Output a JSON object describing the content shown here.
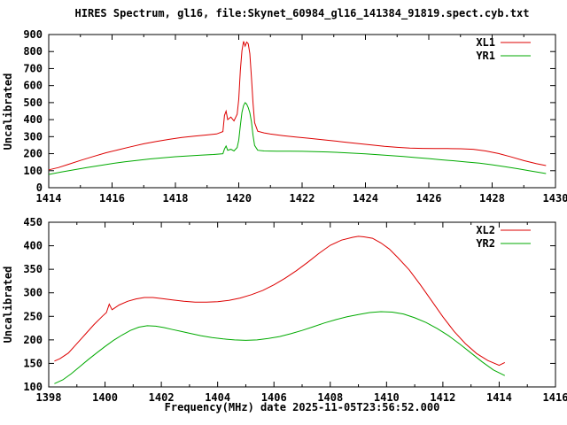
{
  "colors": {
    "background": "#ffffff",
    "axis": "#000000",
    "series_red": "#dd0000",
    "series_green": "#00aa00"
  },
  "chart_data": [
    {
      "type": "line",
      "title": "HIRES Spectrum, gl16, file:Skynet_60984_gl16_141384_91819.spect.cyb.txt",
      "ylabel": "Uncalibrated",
      "xlabel": "",
      "xlim": [
        1414,
        1430
      ],
      "ylim": [
        0,
        900
      ],
      "xticks": [
        1414,
        1416,
        1418,
        1420,
        1422,
        1424,
        1426,
        1428,
        1430
      ],
      "yticks": [
        0,
        100,
        200,
        300,
        400,
        500,
        600,
        700,
        800,
        900
      ],
      "x_minor_step": 1,
      "grid": false,
      "legend_position": "top-right",
      "series": [
        {
          "name": "XL1",
          "color": "#dd0000",
          "points": [
            [
              1414.0,
              105
            ],
            [
              1414.3,
              118
            ],
            [
              1414.6,
              136
            ],
            [
              1415.0,
              160
            ],
            [
              1415.4,
              183
            ],
            [
              1415.8,
              205
            ],
            [
              1416.2,
              223
            ],
            [
              1416.6,
              241
            ],
            [
              1417.0,
              258
            ],
            [
              1417.4,
              272
            ],
            [
              1417.8,
              284
            ],
            [
              1418.2,
              295
            ],
            [
              1418.6,
              303
            ],
            [
              1419.0,
              310
            ],
            [
              1419.3,
              316
            ],
            [
              1419.5,
              330
            ],
            [
              1419.55,
              425
            ],
            [
              1419.6,
              450
            ],
            [
              1419.65,
              400
            ],
            [
              1419.75,
              415
            ],
            [
              1419.85,
              392
            ],
            [
              1419.95,
              432
            ],
            [
              1420.0,
              520
            ],
            [
              1420.05,
              690
            ],
            [
              1420.1,
              805
            ],
            [
              1420.15,
              860
            ],
            [
              1420.2,
              832
            ],
            [
              1420.25,
              856
            ],
            [
              1420.3,
              846
            ],
            [
              1420.35,
              788
            ],
            [
              1420.4,
              650
            ],
            [
              1420.45,
              498
            ],
            [
              1420.5,
              382
            ],
            [
              1420.6,
              332
            ],
            [
              1420.8,
              322
            ],
            [
              1421.0,
              315
            ],
            [
              1421.4,
              306
            ],
            [
              1421.8,
              298
            ],
            [
              1422.2,
              291
            ],
            [
              1422.6,
              283
            ],
            [
              1423.0,
              275
            ],
            [
              1423.4,
              267
            ],
            [
              1423.8,
              259
            ],
            [
              1424.2,
              251
            ],
            [
              1424.6,
              243
            ],
            [
              1425.0,
              237
            ],
            [
              1425.4,
              233
            ],
            [
              1425.8,
              231
            ],
            [
              1426.2,
              230
            ],
            [
              1426.6,
              230
            ],
            [
              1427.0,
              229
            ],
            [
              1427.4,
              226
            ],
            [
              1427.8,
              216
            ],
            [
              1428.2,
              201
            ],
            [
              1428.6,
              181
            ],
            [
              1429.0,
              159
            ],
            [
              1429.4,
              141
            ],
            [
              1429.7,
              130
            ]
          ]
        },
        {
          "name": "YR1",
          "color": "#00aa00",
          "points": [
            [
              1414.0,
              78
            ],
            [
              1414.4,
              92
            ],
            [
              1414.8,
              105
            ],
            [
              1415.2,
              118
            ],
            [
              1415.6,
              130
            ],
            [
              1416.0,
              142
            ],
            [
              1416.4,
              152
            ],
            [
              1416.8,
              161
            ],
            [
              1417.2,
              169
            ],
            [
              1417.6,
              176
            ],
            [
              1418.0,
              182
            ],
            [
              1418.4,
              187
            ],
            [
              1418.8,
              191
            ],
            [
              1419.2,
              195
            ],
            [
              1419.5,
              200
            ],
            [
              1419.55,
              228
            ],
            [
              1419.6,
              245
            ],
            [
              1419.65,
              220
            ],
            [
              1419.75,
              226
            ],
            [
              1419.85,
              216
            ],
            [
              1419.95,
              236
            ],
            [
              1420.0,
              280
            ],
            [
              1420.05,
              365
            ],
            [
              1420.1,
              442
            ],
            [
              1420.15,
              482
            ],
            [
              1420.2,
              500
            ],
            [
              1420.25,
              491
            ],
            [
              1420.3,
              471
            ],
            [
              1420.35,
              440
            ],
            [
              1420.4,
              388
            ],
            [
              1420.45,
              308
            ],
            [
              1420.5,
              248
            ],
            [
              1420.6,
              220
            ],
            [
              1420.8,
              216
            ],
            [
              1421.2,
              215
            ],
            [
              1421.6,
              215
            ],
            [
              1422.0,
              214
            ],
            [
              1422.4,
              212
            ],
            [
              1422.8,
              210
            ],
            [
              1423.2,
              207
            ],
            [
              1423.6,
              203
            ],
            [
              1424.0,
              199
            ],
            [
              1424.4,
              194
            ],
            [
              1424.8,
              189
            ],
            [
              1425.2,
              183
            ],
            [
              1425.6,
              177
            ],
            [
              1426.0,
              171
            ],
            [
              1426.4,
              164
            ],
            [
              1426.8,
              158
            ],
            [
              1427.2,
              151
            ],
            [
              1427.6,
              144
            ],
            [
              1428.0,
              135
            ],
            [
              1428.4,
              124
            ],
            [
              1428.8,
              112
            ],
            [
              1429.2,
              99
            ],
            [
              1429.7,
              83
            ]
          ]
        }
      ]
    },
    {
      "type": "line",
      "title": "",
      "ylabel": "Uncalibrated",
      "xlabel": "Frequency(MHz) date 2025-11-05T23:56:52.000",
      "xlim": [
        1398,
        1416
      ],
      "ylim": [
        100,
        450
      ],
      "xticks": [
        1398,
        1400,
        1402,
        1404,
        1406,
        1408,
        1410,
        1412,
        1414,
        1416
      ],
      "yticks": [
        100,
        150,
        200,
        250,
        300,
        350,
        400,
        450
      ],
      "x_minor_step": 1,
      "grid": false,
      "legend_position": "top-right",
      "series": [
        {
          "name": "XL2",
          "color": "#dd0000",
          "points": [
            [
              1398.2,
              155
            ],
            [
              1398.4,
              160
            ],
            [
              1398.7,
              172
            ],
            [
              1399.0,
              192
            ],
            [
              1399.3,
              212
            ],
            [
              1399.6,
              232
            ],
            [
              1399.9,
              250
            ],
            [
              1400.05,
              258
            ],
            [
              1400.15,
              276
            ],
            [
              1400.25,
              264
            ],
            [
              1400.5,
              274
            ],
            [
              1400.8,
              282
            ],
            [
              1401.1,
              287
            ],
            [
              1401.4,
              290
            ],
            [
              1401.7,
              290
            ],
            [
              1402.0,
              288
            ],
            [
              1402.4,
              285
            ],
            [
              1402.8,
              282
            ],
            [
              1403.2,
              280
            ],
            [
              1403.6,
              280
            ],
            [
              1404.0,
              281
            ],
            [
              1404.4,
              284
            ],
            [
              1404.8,
              289
            ],
            [
              1405.2,
              296
            ],
            [
              1405.6,
              305
            ],
            [
              1406.0,
              317
            ],
            [
              1406.4,
              331
            ],
            [
              1406.8,
              347
            ],
            [
              1407.2,
              365
            ],
            [
              1407.6,
              384
            ],
            [
              1408.0,
              401
            ],
            [
              1408.4,
              412
            ],
            [
              1408.8,
              418
            ],
            [
              1409.0,
              420
            ],
            [
              1409.2,
              419
            ],
            [
              1409.5,
              416
            ],
            [
              1409.8,
              406
            ],
            [
              1410.1,
              393
            ],
            [
              1410.4,
              375
            ],
            [
              1410.8,
              349
            ],
            [
              1411.2,
              317
            ],
            [
              1411.6,
              283
            ],
            [
              1412.0,
              249
            ],
            [
              1412.4,
              218
            ],
            [
              1412.8,
              192
            ],
            [
              1413.2,
              171
            ],
            [
              1413.6,
              156
            ],
            [
              1414.0,
              146
            ],
            [
              1414.2,
              152
            ]
          ]
        },
        {
          "name": "YR2",
          "color": "#00aa00",
          "points": [
            [
              1398.2,
              107
            ],
            [
              1398.5,
              115
            ],
            [
              1398.8,
              128
            ],
            [
              1399.1,
              143
            ],
            [
              1399.4,
              158
            ],
            [
              1399.7,
              172
            ],
            [
              1400.0,
              186
            ],
            [
              1400.3,
              199
            ],
            [
              1400.6,
              210
            ],
            [
              1400.9,
              220
            ],
            [
              1401.2,
              227
            ],
            [
              1401.5,
              230
            ],
            [
              1401.8,
              229
            ],
            [
              1402.1,
              226
            ],
            [
              1402.4,
              222
            ],
            [
              1402.7,
              218
            ],
            [
              1403.0,
              214
            ],
            [
              1403.4,
              209
            ],
            [
              1403.8,
              205
            ],
            [
              1404.2,
              202
            ],
            [
              1404.6,
              200
            ],
            [
              1405.0,
              199
            ],
            [
              1405.4,
              200
            ],
            [
              1405.8,
              203
            ],
            [
              1406.2,
              207
            ],
            [
              1406.6,
              213
            ],
            [
              1407.0,
              220
            ],
            [
              1407.4,
              228
            ],
            [
              1407.8,
              236
            ],
            [
              1408.2,
              243
            ],
            [
              1408.6,
              249
            ],
            [
              1409.0,
              254
            ],
            [
              1409.4,
              258
            ],
            [
              1409.8,
              260
            ],
            [
              1410.2,
              259
            ],
            [
              1410.6,
              255
            ],
            [
              1411.0,
              247
            ],
            [
              1411.4,
              237
            ],
            [
              1411.8,
              224
            ],
            [
              1412.2,
              209
            ],
            [
              1412.6,
              191
            ],
            [
              1413.0,
              172
            ],
            [
              1413.4,
              153
            ],
            [
              1413.8,
              136
            ],
            [
              1414.2,
              124
            ]
          ]
        }
      ]
    }
  ]
}
